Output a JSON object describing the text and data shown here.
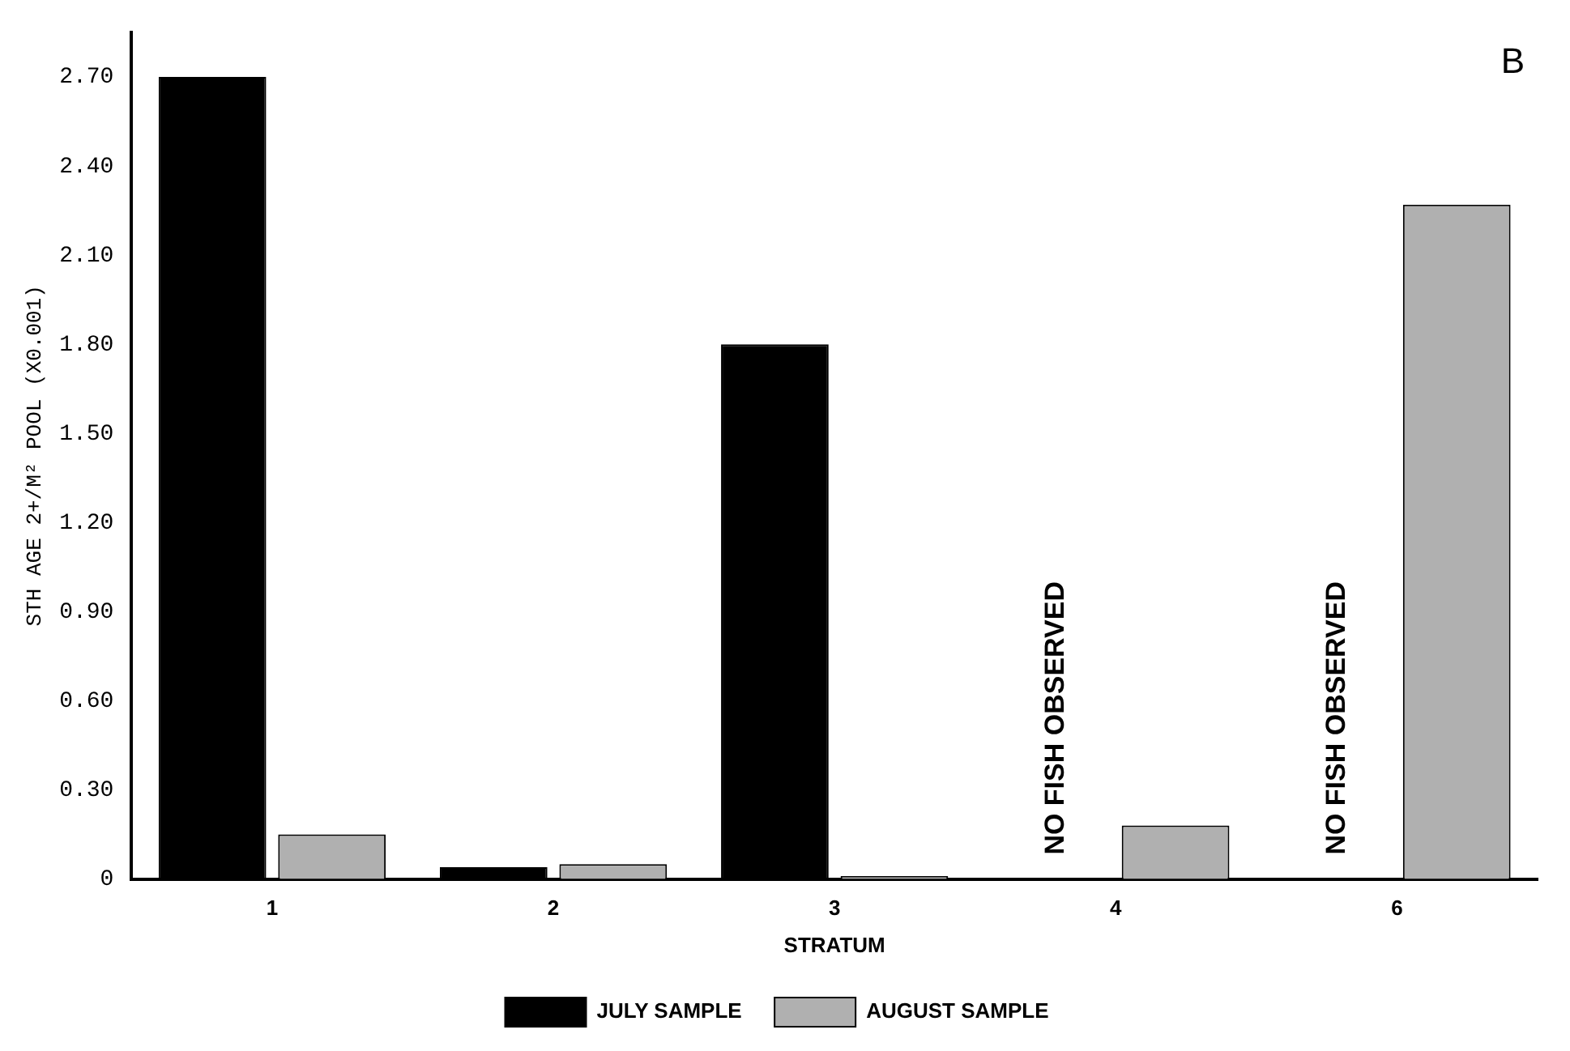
{
  "chart_data": {
    "type": "bar",
    "ylabel": "STH AGE 2+/M² POOL (X0.001)",
    "xlabel": "STRATUM",
    "categories": [
      "1",
      "2",
      "3",
      "4",
      "6"
    ],
    "series": [
      {
        "name": "JULY SAMPLE",
        "color": "#000000",
        "values": [
          2.7,
          0.04,
          1.8,
          null,
          null
        ]
      },
      {
        "name": "AUGUST SAMPLE",
        "color": "#b0b0b0",
        "values": [
          0.15,
          0.05,
          0.01,
          0.18,
          2.27
        ]
      }
    ],
    "ylim": [
      0,
      2.85
    ],
    "yticks": [
      0,
      {
        "value": 0.3,
        "label": "0.30"
      },
      {
        "value": 0.6,
        "label": "0.60"
      },
      {
        "value": 0.9,
        "label": "0.90"
      },
      {
        "value": 1.2,
        "label": "1.20"
      },
      {
        "value": 1.5,
        "label": "1.50"
      },
      {
        "value": 1.8,
        "label": "1.80"
      },
      {
        "value": 2.1,
        "label": "2.10"
      },
      {
        "value": 2.4,
        "label": "2.40"
      },
      {
        "value": 2.7,
        "label": "2.70"
      }
    ],
    "grid": false,
    "legend": "bottom",
    "annotations": [
      "B",
      "NO FISH OBSERVED",
      "NO FISH OBSERVED"
    ]
  }
}
